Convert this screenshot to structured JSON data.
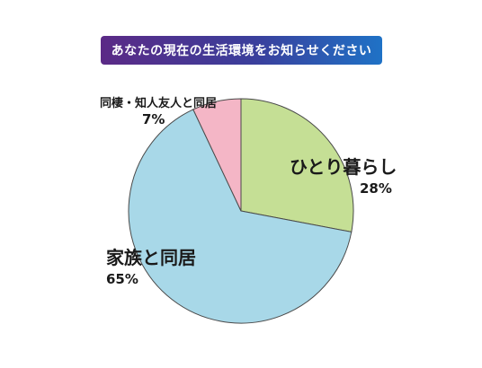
{
  "chart_data": {
    "type": "pie",
    "title": "あなたの現在の生活環境をお知らせください",
    "slices": [
      {
        "label": "ひとり暮らし",
        "value": 28,
        "pct_label": "28%",
        "color": "#c5df95"
      },
      {
        "label": "家族と同居",
        "value": 65,
        "pct_label": "65%",
        "color": "#a8d8e8"
      },
      {
        "label": "同棲・知人友人と同居",
        "value": 7,
        "pct_label": "7%",
        "color": "#f4b6c6"
      }
    ]
  }
}
